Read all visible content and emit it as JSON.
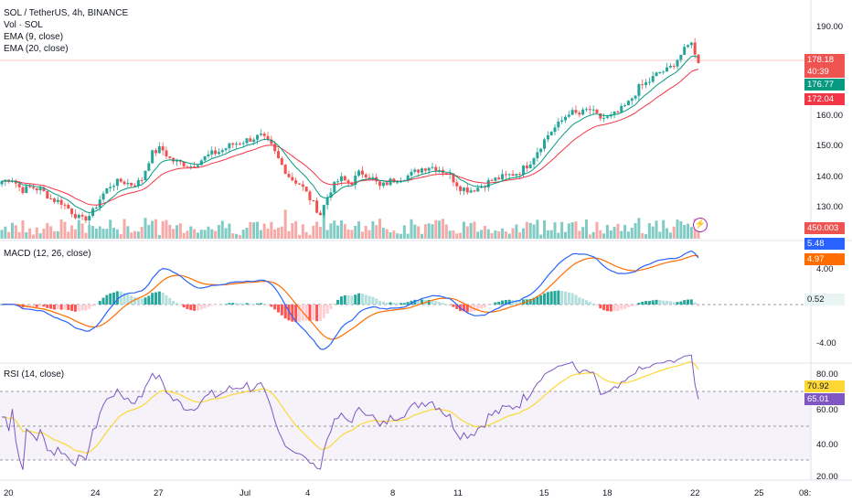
{
  "header": {
    "symbol_title": "SOL / TetherUS, 4h, BINANCE",
    "volume_label": "Vol · SOL",
    "ema9_label": "EMA (9, close)",
    "ema20_label": "EMA (20, close)"
  },
  "macd_legend": "MACD (12, 26, close)",
  "rsi_legend": "RSI (14, close)",
  "price_axis": {
    "ticks": [
      "190.00",
      "160.00",
      "150.00",
      "140.00",
      "130.00"
    ],
    "tags": {
      "last_price": "178.18",
      "countdown": "40:39",
      "ema9": "176.77",
      "ema20": "172.04",
      "volume": "450.003 K"
    }
  },
  "macd_axis": {
    "ticks": [
      "4.00",
      "-4.00"
    ],
    "tags": {
      "macd": "5.48",
      "signal": "4.97",
      "histogram": "0.52"
    }
  },
  "rsi_axis": {
    "ticks": [
      "80.00",
      "60.00",
      "40.00",
      "20.00"
    ],
    "tags": {
      "ma": "70.92",
      "rsi": "65.01"
    }
  },
  "time_axis": [
    "20",
    "24",
    "27",
    "Jul",
    "4",
    "8",
    "11",
    "15",
    "18",
    "22",
    "25",
    "08:"
  ],
  "colors": {
    "up": "#26a69a",
    "down": "#ef5350",
    "ema9": "#089981",
    "ema20": "#f23645",
    "macd_line": "#2962ff",
    "signal_line": "#ff6d00",
    "rsi_line": "#7e57c2",
    "rsi_ma": "#fdd835",
    "rsi_band": "#7e57c2"
  },
  "chart_data": {
    "type": "candlestick",
    "symbol": "SOL/USDT",
    "interval": "4h",
    "price_range": [
      122,
      195
    ],
    "approx_close_path": [
      139,
      140,
      136,
      137,
      136,
      133,
      132,
      129,
      126,
      128,
      134,
      138,
      139,
      138,
      139,
      148,
      150,
      146,
      145,
      144,
      146,
      148,
      149,
      151,
      152,
      153,
      154,
      151,
      145,
      140,
      138,
      133,
      128,
      136,
      140,
      138,
      142,
      141,
      137,
      139,
      140,
      141,
      143,
      144,
      143,
      141,
      137,
      136,
      137,
      139,
      140,
      141,
      142,
      145,
      150,
      155,
      158,
      162,
      161,
      163,
      160,
      160,
      162,
      165,
      170,
      172,
      175,
      176,
      180,
      184,
      178
    ],
    "macd_range": [
      -6,
      7
    ],
    "rsi_range": [
      20,
      90
    ]
  }
}
